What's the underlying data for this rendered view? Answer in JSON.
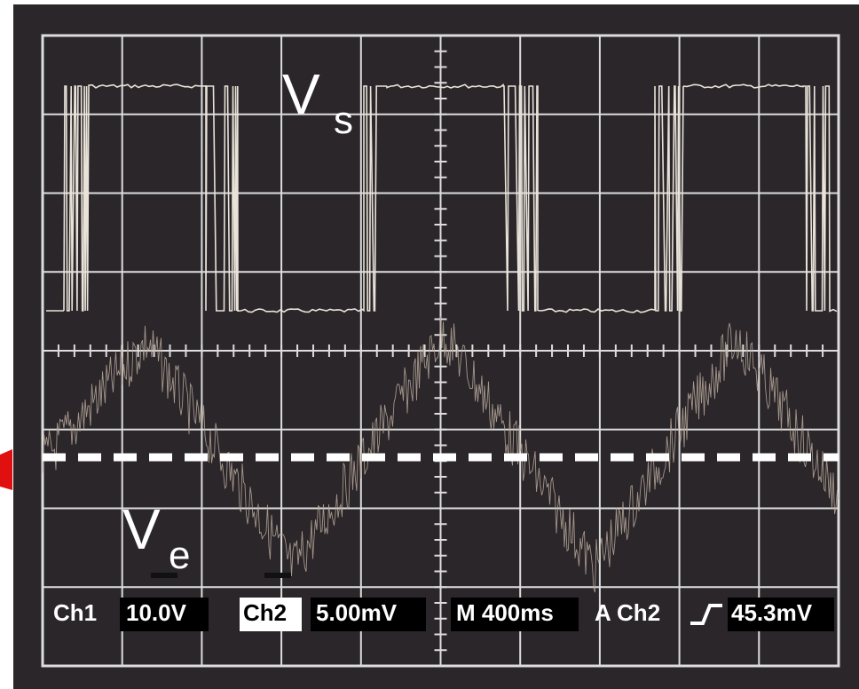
{
  "trace_labels": {
    "top": {
      "letter": "V",
      "subscript": "s"
    },
    "bottom": {
      "letter": "V",
      "subscript": "e"
    }
  },
  "status_bar": {
    "ch1": "Ch1",
    "ch1_scale": "10.0V",
    "ch2": "Ch2",
    "ch2_scale": "5.00mV",
    "timebase": "M 400ms",
    "trigger_source": "A Ch2",
    "trigger_level": "45.3mV"
  }
}
